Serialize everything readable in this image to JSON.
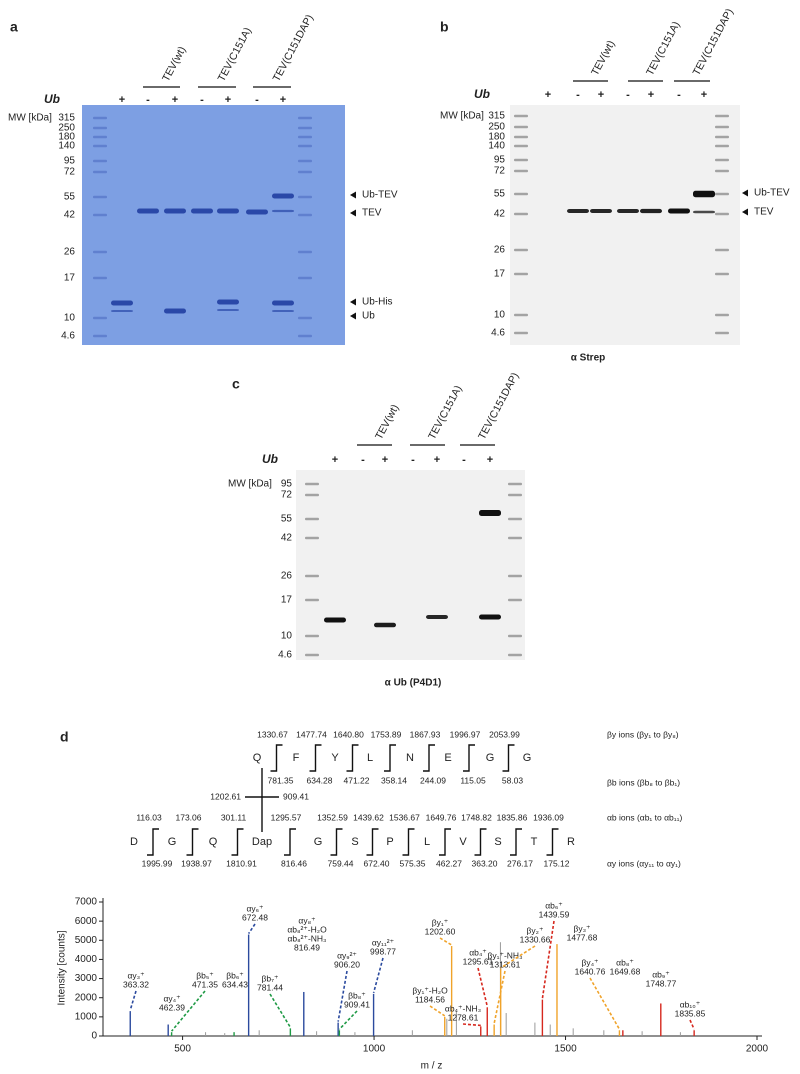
{
  "panels": [
    {
      "letter": "a",
      "ub": "Ub",
      "groups": [
        "TEV(wt)",
        "TEV(C151A)",
        "TEV(C151DAP)"
      ],
      "signs": [
        "+",
        "-",
        "+",
        "-",
        "+",
        "-",
        "+"
      ],
      "mw_header": "MW [kDa]",
      "mw": [
        "315",
        "250",
        "180",
        "140",
        "95",
        "72",
        "55",
        "42",
        "26",
        "17",
        "10",
        "4.6"
      ],
      "right_labels": [
        "Ub-TEV",
        "TEV",
        "Ub-His",
        "Ub"
      ]
    },
    {
      "letter": "b",
      "ub": "Ub",
      "groups": [
        "TEV(wt)",
        "TEV(C151A)",
        "TEV(C151DAP)"
      ],
      "signs": [
        "+",
        "-",
        "+",
        "-",
        "+",
        "-",
        "+"
      ],
      "mw_header": "MW [kDa]",
      "mw": [
        "315",
        "250",
        "180",
        "140",
        "95",
        "72",
        "55",
        "42",
        "26",
        "17",
        "10",
        "4.6"
      ],
      "right_labels": [
        "Ub-TEV",
        "TEV"
      ],
      "caption": "α Strep"
    },
    {
      "letter": "c",
      "ub": "Ub",
      "groups": [
        "TEV(wt)",
        "TEV(C151A)",
        "TEV(C151DAP)"
      ],
      "signs": [
        "+",
        "-",
        "+",
        "-",
        "+",
        "-",
        "+"
      ],
      "mw_header": "MW [kDa]",
      "mw": [
        "95",
        "72",
        "55",
        "42",
        "26",
        "17",
        "10",
        "4.6"
      ],
      "caption": "α Ub (P4D1)"
    }
  ],
  "panel_d": {
    "letter": "d",
    "beta": {
      "residues": [
        "Q",
        "F",
        "Y",
        "L",
        "N",
        "E",
        "G",
        "G"
      ],
      "y_ions": [
        "1330.67",
        "1477.74",
        "1640.80",
        "1753.89",
        "1867.93",
        "1996.97",
        "2053.99"
      ],
      "b_ions": [
        "781.35",
        "634.28",
        "471.22",
        "358.14",
        "244.09",
        "115.05",
        "58.03"
      ]
    },
    "crosslink_ions": [
      "1202.61",
      "909.41"
    ],
    "alpha": {
      "residues": [
        "D",
        "G",
        "Q",
        "Dap",
        "G",
        "S",
        "P",
        "L",
        "V",
        "S",
        "T",
        "R"
      ],
      "b_ions": [
        "116.03",
        "173.06",
        "301.11",
        "1295.57",
        "1352.59",
        "1439.62",
        "1536.67",
        "1649.76",
        "1748.82",
        "1835.86",
        "1936.09"
      ],
      "y_ions": [
        "1995.99",
        "1938.97",
        "1810.91",
        "816.46",
        "759.44",
        "672.40",
        "575.35",
        "462.27",
        "363.20",
        "276.17",
        "175.12"
      ]
    },
    "legend": [
      {
        "text": "βy ions (βy₁ to βy₈)",
        "color": "#f0a32a"
      },
      {
        "text": "βb ions (βb₈ to βb₁)",
        "color": "#1f9a45"
      },
      {
        "text": "αb ions (αb₁ to αb₁₁)",
        "color": "#d6281e"
      },
      {
        "text": "αy ions (αy₁₁ to αy₁)",
        "color": "#2b4a9e"
      }
    ],
    "chart_data": {
      "type": "stem",
      "x_label": "m / z",
      "y_label": "Intensity [counts]",
      "xlim": [
        300,
        2000
      ],
      "xticks": [
        500,
        1000,
        1500,
        2000
      ],
      "ylim": [
        0,
        7000
      ],
      "yticks": [
        0,
        1000,
        2000,
        3000,
        4000,
        5000,
        6000,
        7000
      ],
      "background_color": "#9a9a9a",
      "background_mz": [
        560,
        610,
        700,
        850,
        950,
        1100,
        1190,
        1215,
        1330,
        1345,
        1420,
        1460,
        1520,
        1600,
        1700,
        1800
      ],
      "background_intensity": [
        200,
        150,
        300,
        250,
        200,
        300,
        900,
        1300,
        4900,
        1200,
        700,
        600,
        400,
        300,
        250,
        200
      ],
      "peaks": [
        {
          "names": [
            "αy₃⁺"
          ],
          "colors": [
            "#2b4a9e"
          ],
          "mz": 363.32,
          "mz_label": "363.32",
          "intensity": 1300
        },
        {
          "names": [
            "αy₄⁺"
          ],
          "colors": [
            "#2b4a9e"
          ],
          "mz": 462.39,
          "mz_label": "462.39",
          "intensity": 600
        },
        {
          "names": [
            "βb₅⁺"
          ],
          "colors": [
            "#1f9a45"
          ],
          "mz": 471.35,
          "mz_label": "471.35",
          "intensity": 200
        },
        {
          "names": [
            "βb₆⁺"
          ],
          "colors": [
            "#1f9a45"
          ],
          "mz": 634.43,
          "mz_label": "634.43",
          "intensity": 200
        },
        {
          "names": [
            "αy₆⁺"
          ],
          "colors": [
            "#2b4a9e"
          ],
          "mz": 672.48,
          "mz_label": "672.48",
          "intensity": 5300
        },
        {
          "names": [
            "βb₇⁺"
          ],
          "colors": [
            "#1f9a45"
          ],
          "mz": 781.44,
          "mz_label": "781.44",
          "intensity": 400
        },
        {
          "names": [
            "αy₈⁺",
            "αb₈²⁺-H₂O",
            "αb₈²⁺-NH₃"
          ],
          "colors": [
            "#2b4a9e",
            "#d6281e",
            "#d6281e"
          ],
          "mz": 816.49,
          "mz_label": "816.49",
          "intensity": 2300
        },
        {
          "names": [
            "αy₉²⁺"
          ],
          "colors": [
            "#2b4a9e"
          ],
          "mz": 906.2,
          "mz_label": "906.20",
          "intensity": 700
        },
        {
          "names": [
            "βb₈⁺"
          ],
          "colors": [
            "#1f9a45"
          ],
          "mz": 909.41,
          "mz_label": "909.41",
          "intensity": 300
        },
        {
          "names": [
            "αy₁₁²⁺"
          ],
          "colors": [
            "#2b4a9e"
          ],
          "mz": 998.77,
          "mz_label": "998.77",
          "intensity": 2200
        },
        {
          "names": [
            "βy₁⁺-H₂O"
          ],
          "colors": [
            "#f0a32a"
          ],
          "mz": 1184.56,
          "mz_label": "1184.56",
          "intensity": 1000
        },
        {
          "names": [
            "βy₁⁺"
          ],
          "colors": [
            "#f0a32a"
          ],
          "mz": 1202.6,
          "mz_label": "1202.60",
          "intensity": 4700
        },
        {
          "names": [
            "αb₄⁺-NH₃"
          ],
          "colors": [
            "#d6281e"
          ],
          "mz": 1278.61,
          "mz_label": "1278.61",
          "intensity": 500
        },
        {
          "names": [
            "αb₄⁺"
          ],
          "colors": [
            "#d6281e"
          ],
          "mz": 1295.61,
          "mz_label": "1295.61",
          "intensity": 1500
        },
        {
          "names": [
            "βy₁⁺-NH₃"
          ],
          "colors": [
            "#f0a32a"
          ],
          "mz": 1313.61,
          "mz_label": "1313.61",
          "intensity": 600
        },
        {
          "names": [
            "βy₂⁺"
          ],
          "colors": [
            "#f0a32a"
          ],
          "mz": 1330.66,
          "mz_label": "1330.66",
          "intensity": 3500
        },
        {
          "names": [
            "αb₆⁺"
          ],
          "colors": [
            "#d6281e"
          ],
          "mz": 1439.59,
          "mz_label": "1439.59",
          "intensity": 1900
        },
        {
          "names": [
            "βy₃⁺"
          ],
          "colors": [
            "#f0a32a"
          ],
          "mz": 1477.68,
          "mz_label": "1477.68",
          "intensity": 4800
        },
        {
          "names": [
            "βy₄⁺"
          ],
          "colors": [
            "#f0a32a"
          ],
          "mz": 1640.76,
          "mz_label": "1640.76",
          "intensity": 300
        },
        {
          "names": [
            "αb₈⁺"
          ],
          "colors": [
            "#d6281e"
          ],
          "mz": 1649.68,
          "mz_label": "1649.68",
          "intensity": 300
        },
        {
          "names": [
            "αb₉⁺"
          ],
          "colors": [
            "#d6281e"
          ],
          "mz": 1748.77,
          "mz_label": "1748.77",
          "intensity": 1700
        },
        {
          "names": [
            "αb₁₀⁺"
          ],
          "colors": [
            "#d6281e"
          ],
          "mz": 1835.85,
          "mz_label": "1835.85",
          "intensity": 300
        }
      ]
    }
  }
}
